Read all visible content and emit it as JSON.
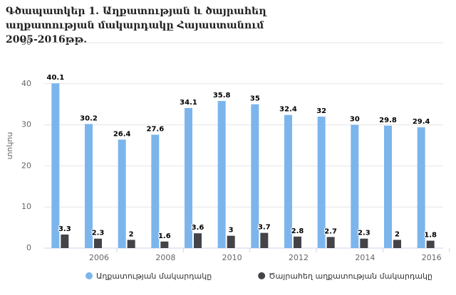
{
  "chart_data": {
    "type": "bar",
    "title": "Գծապատկեր 1. Աղքատության և ծայրահեղ աղքատության մակարդակը Հայաստանում 2005-2016թթ.",
    "y_label": "տոկոս",
    "categories": [
      null,
      "2006",
      null,
      "2008",
      null,
      "2010",
      null,
      "2012",
      null,
      "2014",
      null,
      "2016"
    ],
    "series": [
      {
        "name": "Աղքատության մակարդակը",
        "color": "#7cb5ec",
        "values": [
          40.1,
          30.2,
          26.4,
          27.6,
          34.1,
          35.8,
          35,
          32.4,
          32,
          30,
          29.8,
          29.4
        ]
      },
      {
        "name": "Ծայրահեղ աղքատության մակարդակը",
        "color": "#434348",
        "values": [
          3.3,
          2.3,
          2,
          1.6,
          3.6,
          3,
          3.7,
          2.8,
          2.7,
          2.3,
          2,
          1.8
        ]
      }
    ],
    "ylim": [
      0,
      50
    ],
    "yticks": [
      0,
      10,
      20,
      30,
      40,
      50
    ],
    "grid": true,
    "legend": "bottom"
  }
}
